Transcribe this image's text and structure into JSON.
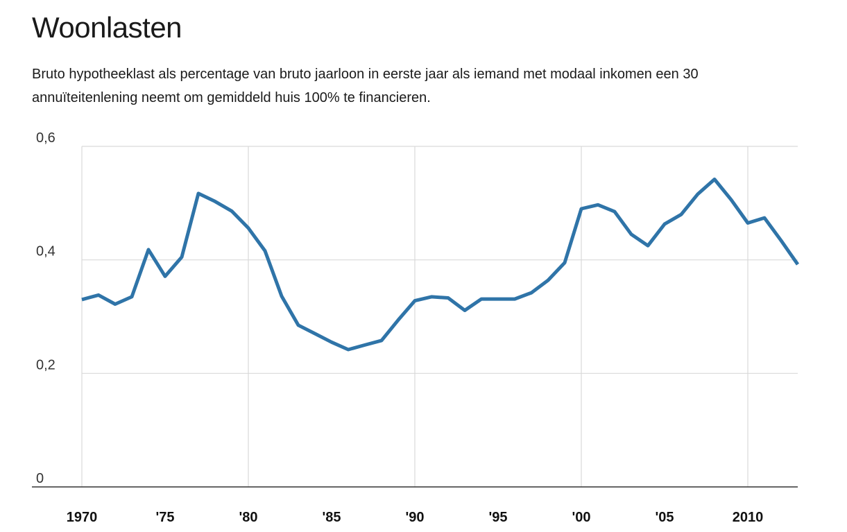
{
  "title": "Woonlasten",
  "subtitle_line1": "Bruto hypotheeklast als percentage van bruto jaarloon in eerste jaar als iemand met modaal inkomen een 30",
  "subtitle_line2": "annuïteitenlening neemt om gemiddeld huis 100% te financieren.",
  "colors": {
    "line": "#2f74a8",
    "grid": "#d9d9d9",
    "axis": "#333333"
  },
  "chart_data": {
    "type": "line",
    "title": "Woonlasten",
    "xlabel": "",
    "ylabel": "",
    "xlim": [
      1970,
      2013
    ],
    "ylim": [
      0,
      0.6
    ],
    "grid": true,
    "y_ticks": [
      {
        "value": 0,
        "label": "0"
      },
      {
        "value": 0.2,
        "label": "0,2"
      },
      {
        "value": 0.4,
        "label": "0,4"
      },
      {
        "value": 0.6,
        "label": "0,6"
      }
    ],
    "x_ticks": [
      {
        "value": 1970,
        "label": "1970"
      },
      {
        "value": 1975,
        "label": "'75"
      },
      {
        "value": 1980,
        "label": "'80"
      },
      {
        "value": 1985,
        "label": "'85"
      },
      {
        "value": 1990,
        "label": "'90"
      },
      {
        "value": 1995,
        "label": "'95"
      },
      {
        "value": 2000,
        "label": "'00"
      },
      {
        "value": 2005,
        "label": "'05"
      },
      {
        "value": 2010,
        "label": "2010"
      }
    ],
    "x_vgrid": [
      1970,
      1980,
      1990,
      2000,
      2010
    ],
    "series": [
      {
        "x": [
          1970,
          1971,
          1972,
          1973,
          1974,
          1975,
          1976,
          1977,
          1978,
          1979,
          1980,
          1981,
          1982,
          1983,
          1984,
          1985,
          1986,
          1987,
          1988,
          1989,
          1990,
          1991,
          1992,
          1993,
          1994,
          1995,
          1996,
          1997,
          1998,
          1999,
          2000,
          2001,
          2002,
          2003,
          2004,
          2005,
          2006,
          2007,
          2008,
          2009,
          2010,
          2011,
          2012,
          2013
        ],
        "values": [
          0.33,
          0.338,
          0.322,
          0.335,
          0.418,
          0.371,
          0.405,
          0.517,
          0.503,
          0.486,
          0.456,
          0.416,
          0.336,
          0.285,
          0.27,
          0.255,
          0.242,
          0.25,
          0.258,
          0.294,
          0.328,
          0.335,
          0.333,
          0.311,
          0.331,
          0.331,
          0.331,
          0.342,
          0.364,
          0.395,
          0.49,
          0.497,
          0.485,
          0.445,
          0.425,
          0.463,
          0.48,
          0.516,
          0.542,
          0.506,
          0.465,
          0.474,
          0.434,
          0.392
        ]
      }
    ]
  }
}
